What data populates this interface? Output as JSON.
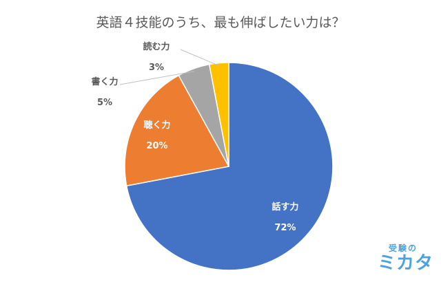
{
  "chart_data": {
    "type": "pie",
    "title": "英語４技能のうち、最も伸ばしたい力は？",
    "slices": [
      {
        "label": "話す力",
        "value": 72,
        "value_label": "72%",
        "color": "#4472C4"
      },
      {
        "label": "聴く力",
        "value": 20,
        "value_label": "20%",
        "color": "#ED7D31"
      },
      {
        "label": "書く力",
        "value": 5,
        "value_label": "5%",
        "color": "#A5A5A5"
      },
      {
        "label": "読む力",
        "value": 3,
        "value_label": "3%",
        "color": "#FFC000"
      }
    ],
    "start_angle": "12 o'clock",
    "direction": "clockwise"
  },
  "logo": {
    "top": "受験の",
    "main": "ミカタ"
  }
}
